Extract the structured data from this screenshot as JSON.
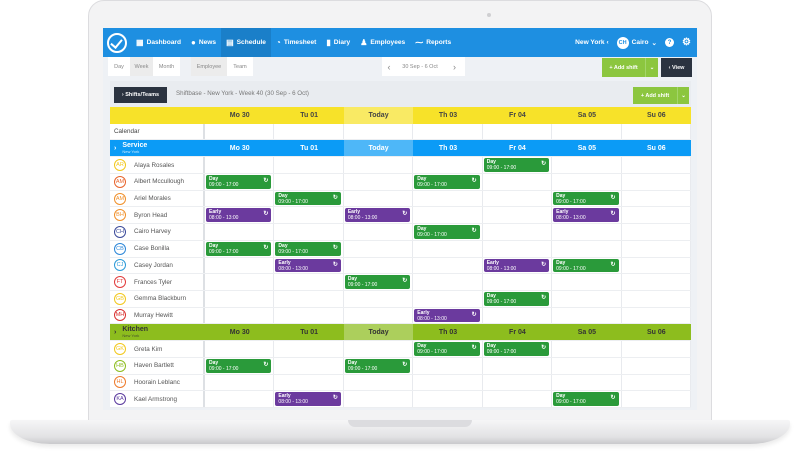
{
  "nav": {
    "items": [
      {
        "label": "Dashboard",
        "icon": "grid-icon"
      },
      {
        "label": "News",
        "icon": "chat-icon"
      },
      {
        "label": "Schedule",
        "icon": "calendar-icon",
        "active": true
      },
      {
        "label": "Timesheet",
        "icon": "stopwatch-icon"
      },
      {
        "label": "Diary",
        "icon": "book-icon"
      },
      {
        "label": "Employees",
        "icon": "person-icon"
      },
      {
        "label": "Reports",
        "icon": "chart-icon"
      }
    ],
    "location": "New York",
    "user_initials": "CH",
    "user_name": "Cairo",
    "help": "?",
    "settings": "⚙"
  },
  "toolbar": {
    "views": [
      "Day",
      "Week",
      "Month"
    ],
    "active_view": "Week",
    "groupings": [
      "Employee",
      "Team"
    ],
    "active_grouping": "Employee",
    "date_range": "30 Sep - 6 Oct",
    "add_shift": "+ Add shift",
    "view": "View"
  },
  "subbar": {
    "shifts_teams": "Shifts/Teams",
    "title": "Shiftbase - New York - Week 40 (30 Sep - 6 Oct)",
    "add_shift": "+ Add shift"
  },
  "days": [
    "Mo 30",
    "Tu 01",
    "Today",
    "Th 03",
    "Fr 04",
    "Sa 05",
    "Su 06"
  ],
  "calendar_label": "Calendar",
  "colors": {
    "nav": "#1e8fe1",
    "service": "#0b9bf6",
    "kitchen": "#8dbd1e",
    "day_shift": "#2a9a3a",
    "early_shift": "#6b3a9e",
    "header": "#f7e229"
  },
  "shift_types": {
    "day": {
      "label": "Day",
      "time": "09:00 - 17:00"
    },
    "early": {
      "label": "Early",
      "time": "08:00 - 13:00"
    }
  },
  "groups": [
    {
      "name": "Service",
      "location": "New York",
      "style": "blue",
      "employees": [
        {
          "initials": "AR",
          "name": "Alaya Rosales",
          "color": "#f2c81c",
          "shifts": [
            null,
            null,
            null,
            null,
            "day",
            null,
            null
          ]
        },
        {
          "initials": "AM",
          "name": "Albert Mccullough",
          "color": "#e8642c",
          "shifts": [
            "day",
            null,
            null,
            "day",
            null,
            null,
            null
          ]
        },
        {
          "initials": "AM",
          "name": "Ariel Morales",
          "color": "#f0902a",
          "shifts": [
            null,
            "day",
            null,
            null,
            null,
            "day",
            null
          ]
        },
        {
          "initials": "BH",
          "name": "Byron Head",
          "color": "#f0902a",
          "shifts": [
            "early",
            null,
            "early",
            null,
            null,
            "early",
            null
          ]
        },
        {
          "initials": "CH",
          "name": "Cairo Harvey",
          "color": "#3b4a9a",
          "shifts": [
            null,
            null,
            null,
            "day",
            null,
            null,
            null
          ]
        },
        {
          "initials": "CB",
          "name": "Case Bonilla",
          "color": "#2b86d8",
          "shifts": [
            "day",
            "day",
            null,
            null,
            null,
            null,
            null
          ]
        },
        {
          "initials": "CJ",
          "name": "Casey Jordan",
          "color": "#2b9ad8",
          "shifts": [
            null,
            "early",
            null,
            null,
            "early",
            "day",
            null
          ]
        },
        {
          "initials": "FT",
          "name": "Frances Tyler",
          "color": "#e23b3b",
          "shifts": [
            null,
            null,
            "day",
            null,
            null,
            null,
            null
          ]
        },
        {
          "initials": "GB",
          "name": "Gemma Blackburn",
          "color": "#f2c81c",
          "shifts": [
            null,
            null,
            null,
            null,
            "day",
            null,
            null
          ]
        },
        {
          "initials": "MH",
          "name": "Murray Hewitt",
          "color": "#d9302f",
          "shifts": [
            null,
            null,
            null,
            "early",
            null,
            null,
            null
          ]
        }
      ]
    },
    {
      "name": "Kitchen",
      "location": "New York",
      "style": "lime",
      "employees": [
        {
          "initials": "GK",
          "name": "Greta Kim",
          "color": "#f2c81c",
          "shifts": [
            null,
            null,
            null,
            "day",
            "day",
            null,
            null
          ]
        },
        {
          "initials": "HB",
          "name": "Haven Bartlett",
          "color": "#8dbd1e",
          "shifts": [
            "day",
            null,
            "day",
            null,
            null,
            null,
            null
          ]
        },
        {
          "initials": "HL",
          "name": "Hoorain Leblanc",
          "color": "#ee7a2a",
          "shifts": [
            null,
            null,
            null,
            null,
            null,
            null,
            null
          ]
        },
        {
          "initials": "KA",
          "name": "Kael Armstrong",
          "color": "#5b3a9e",
          "shifts": [
            null,
            "early",
            null,
            null,
            null,
            "day",
            null
          ]
        }
      ]
    }
  ]
}
